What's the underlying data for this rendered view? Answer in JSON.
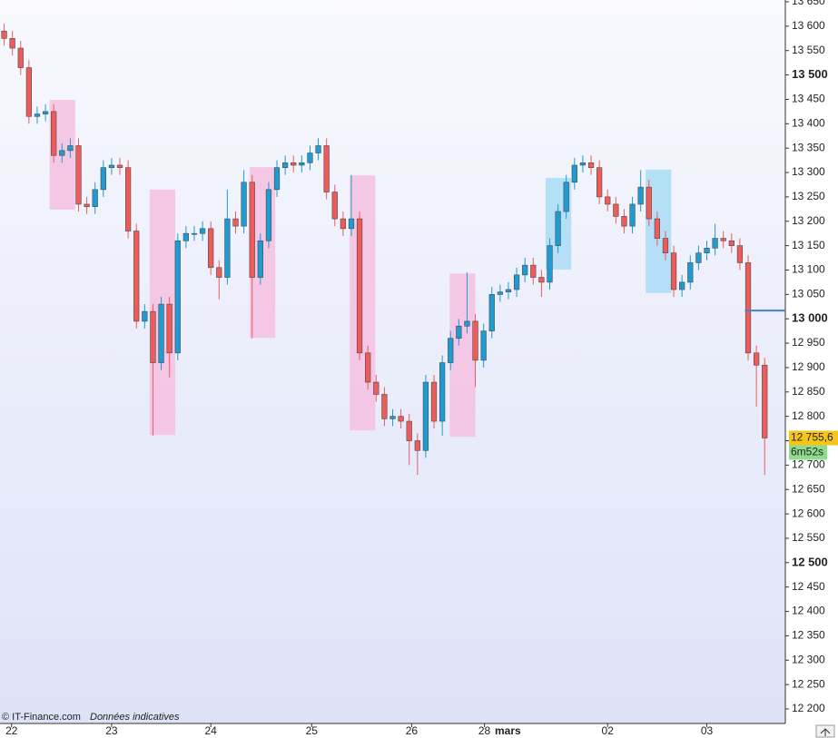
{
  "chart_data": {
    "type": "candlestick",
    "up_color": "#1f9bd1",
    "down_color": "#ee5b5b",
    "outline_color": "#4a4a4a",
    "xlim": [
      -0.5,
      94.5
    ],
    "ylim": [
      12200,
      13650
    ],
    "yticks": [
      {
        "value": 12200,
        "label": "12 200"
      },
      {
        "value": 12250,
        "label": "12 250"
      },
      {
        "value": 12300,
        "label": "12 300"
      },
      {
        "value": 12350,
        "label": "12 350"
      },
      {
        "value": 12400,
        "label": "12 400"
      },
      {
        "value": 12450,
        "label": "12 450"
      },
      {
        "value": 12500,
        "label": "12 500"
      },
      {
        "value": 12550,
        "label": "12 550"
      },
      {
        "value": 12600,
        "label": "12 600"
      },
      {
        "value": 12650,
        "label": "12 650"
      },
      {
        "value": 12700,
        "label": "12 700"
      },
      {
        "value": 12750,
        "label": "12 750"
      },
      {
        "value": 12800,
        "label": "12 800"
      },
      {
        "value": 12850,
        "label": "12 850"
      },
      {
        "value": 12900,
        "label": "12 900"
      },
      {
        "value": 12950,
        "label": "12 950"
      },
      {
        "value": 13000,
        "label": "13 000"
      },
      {
        "value": 13050,
        "label": "13 050"
      },
      {
        "value": 13100,
        "label": "13 100"
      },
      {
        "value": 13150,
        "label": "13 150"
      },
      {
        "value": 13200,
        "label": "13 200"
      },
      {
        "value": 13250,
        "label": "13 250"
      },
      {
        "value": 13300,
        "label": "13 300"
      },
      {
        "value": 13350,
        "label": "13 350"
      },
      {
        "value": 13400,
        "label": "13 400"
      },
      {
        "value": 13450,
        "label": "13 450"
      },
      {
        "value": 13500,
        "label": "13 500"
      },
      {
        "value": 13550,
        "label": "13 550"
      },
      {
        "value": 13600,
        "label": "13 600"
      },
      {
        "value": 13650,
        "label": "13 650"
      }
    ],
    "major_step": 500,
    "xticks": [
      {
        "value": 0.9,
        "label": "22"
      },
      {
        "value": 13,
        "label": "23"
      },
      {
        "value": 25,
        "label": "24"
      },
      {
        "value": 37.2,
        "label": "25"
      },
      {
        "value": 49.3,
        "label": "26"
      },
      {
        "value": 58.1,
        "label": "28"
      },
      {
        "value": 73,
        "label": "02"
      },
      {
        "value": 85,
        "label": "03"
      }
    ],
    "month_label": "mars",
    "open": [
      13590,
      13575,
      13555,
      13515,
      13415,
      13420,
      13425,
      13335,
      13345,
      13355,
      13235,
      13230,
      13265,
      13310,
      13315,
      13310,
      13180,
      12995,
      13015,
      12910,
      13030,
      12930,
      13160,
      13175,
      13175,
      13185,
      13105,
      13085,
      13205,
      13190,
      13280,
      13085,
      13160,
      13265,
      13310,
      13320,
      13315,
      13320,
      13340,
      13355,
      13260,
      13205,
      13185,
      13205,
      12930,
      12870,
      12845,
      12795,
      12800,
      12790,
      12750,
      12730,
      12870,
      12790,
      12910,
      12960,
      12985,
      12995,
      12915,
      12975,
      13050,
      13055,
      13060,
      13090,
      13110,
      13085,
      13075,
      13150,
      13220,
      13280,
      13315,
      13320,
      13310,
      13250,
      13235,
      13210,
      13190,
      13235,
      13270,
      13205,
      13165,
      13135,
      13060,
      13075,
      13115,
      13135,
      13145,
      13165,
      13160,
      13150,
      13115,
      12930,
      12905
    ],
    "high": [
      13605,
      13590,
      13570,
      13530,
      13435,
      13440,
      13440,
      13360,
      13370,
      13370,
      13250,
      13280,
      13325,
      13330,
      13330,
      13325,
      13195,
      13030,
      13030,
      13045,
      13045,
      13175,
      13190,
      13190,
      13200,
      13200,
      13120,
      13265,
      13220,
      13305,
      13295,
      13175,
      13280,
      13325,
      13335,
      13335,
      13335,
      13355,
      13370,
      13370,
      13275,
      13220,
      13295,
      13220,
      12945,
      12885,
      12860,
      12815,
      12815,
      12805,
      12765,
      12885,
      12885,
      12925,
      12975,
      13000,
      13095,
      13010,
      12990,
      13065,
      13070,
      13075,
      13105,
      13125,
      13125,
      13100,
      13165,
      13235,
      13295,
      13330,
      13335,
      13335,
      13325,
      13265,
      13250,
      13225,
      13250,
      13305,
      13285,
      13220,
      13180,
      13150,
      13090,
      13130,
      13150,
      13160,
      13195,
      13180,
      13175,
      13165,
      13130,
      12945,
      12920
    ],
    "low": [
      13560,
      13540,
      13500,
      13400,
      13400,
      13405,
      13320,
      13320,
      13330,
      13220,
      13215,
      13215,
      13250,
      13295,
      13295,
      13165,
      12980,
      12980,
      12760,
      12895,
      12880,
      12915,
      13145,
      13160,
      13160,
      13090,
      13040,
      13070,
      13175,
      13175,
      12960,
      13070,
      13145,
      13250,
      13295,
      13300,
      13300,
      13305,
      13325,
      13245,
      13190,
      13170,
      13170,
      12915,
      12855,
      12830,
      12780,
      12780,
      12775,
      12700,
      12680,
      12715,
      12775,
      12760,
      12895,
      12945,
      12970,
      12860,
      12900,
      12960,
      13035,
      13040,
      13045,
      13075,
      13070,
      13045,
      13060,
      13135,
      13205,
      13265,
      13300,
      13295,
      13235,
      13220,
      13195,
      13175,
      13175,
      13220,
      13190,
      13150,
      13120,
      13045,
      13045,
      13060,
      13100,
      13120,
      13130,
      13145,
      13135,
      13100,
      12915,
      12820,
      12680
    ],
    "close": [
      13575,
      13555,
      13515,
      13415,
      13420,
      13425,
      13335,
      13345,
      13355,
      13235,
      13230,
      13265,
      13310,
      13315,
      13310,
      13180,
      12995,
      13015,
      12910,
      13030,
      12930,
      13160,
      13175,
      13175,
      13185,
      13105,
      13085,
      13205,
      13190,
      13280,
      13085,
      13160,
      13265,
      13310,
      13320,
      13315,
      13320,
      13340,
      13355,
      13260,
      13205,
      13185,
      13205,
      12930,
      12870,
      12845,
      12795,
      12800,
      12790,
      12750,
      12730,
      12870,
      12790,
      12910,
      12960,
      12985,
      12995,
      12915,
      12975,
      13050,
      13055,
      13060,
      13090,
      13110,
      13085,
      13075,
      13150,
      13220,
      13280,
      13315,
      13320,
      13310,
      13250,
      13235,
      13210,
      13190,
      13235,
      13270,
      13205,
      13165,
      13135,
      13060,
      13075,
      13115,
      13135,
      13145,
      13165,
      13160,
      13150,
      13115,
      12930,
      12905,
      12755.6
    ],
    "last_price_label": "12 755,6",
    "countdown": "6m52s",
    "highlights": [
      {
        "x0": 5.5,
        "x1": 8.6,
        "y0": 13224,
        "y1": 13449,
        "color": "#f4bfe0"
      },
      {
        "x0": 17.6,
        "x1": 20.7,
        "y0": 12762,
        "y1": 13265,
        "color": "#f4bfe0"
      },
      {
        "x0": 29.7,
        "x1": 32.8,
        "y0": 12961,
        "y1": 13311,
        "color": "#f4bfe0"
      },
      {
        "x0": 41.8,
        "x1": 44.9,
        "y0": 12771,
        "y1": 13294,
        "color": "#f4bfe0"
      },
      {
        "x0": 53.9,
        "x1": 57.0,
        "y0": 12758,
        "y1": 13093,
        "color": "#f4bfe0"
      },
      {
        "x0": 65.5,
        "x1": 68.6,
        "y0": 13101,
        "y1": 13289,
        "color": "#a9dcf5"
      },
      {
        "x0": 77.6,
        "x1": 80.7,
        "y0": 13053,
        "y1": 13306,
        "color": "#a9dcf5"
      }
    ],
    "level": {
      "value": 13017,
      "start": 89.6,
      "color": "#4a7fd6"
    },
    "credit": "© IT-Finance.com",
    "note": "Données indicatives"
  }
}
